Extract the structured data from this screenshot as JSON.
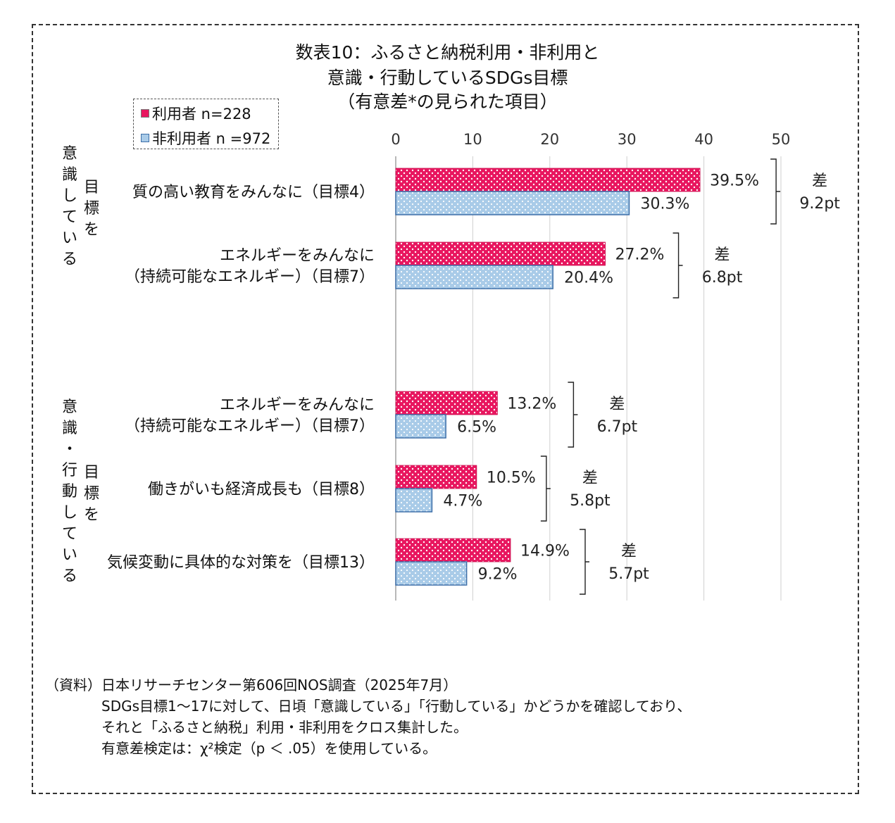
{
  "title": {
    "line1": "数表10：ふるさと納税利用・非利用と",
    "line2": "意識・行動しているSDGs目標",
    "line3": "（有意差*の見られた項目）"
  },
  "legend": {
    "user": "利用者 n=228",
    "nonuser": "非利用者 n =972"
  },
  "groups": {
    "group1": "意識している目標を",
    "group1_col1": "意識している",
    "group1_col2": "目標を",
    "group2": "意識・行動している目標を",
    "group2_col1": "意識・行動している",
    "group2_col2": "目標を"
  },
  "colors": {
    "user": "#e8165f",
    "nonuser": "#a9cbe8",
    "nonuser_border": "#3d6fa8"
  },
  "chart_data": {
    "type": "bar",
    "orientation": "horizontal",
    "xlim": [
      0,
      50
    ],
    "xticks": [
      "0",
      "10",
      "20",
      "30",
      "40",
      "50"
    ],
    "grid": true,
    "legend_position": "top-left",
    "categories": [
      "質の高い教育をみんなに（目標4）",
      "エネルギーをみんなに（持続可能なエネルギー）（目標7）",
      "エネルギーをみんなに（持続可能なエネルギー）（目標7）",
      "働きがいも経済成長も（目標8）",
      "気候変動に具体的な対策を（目標13）"
    ],
    "category_lines": [
      [
        "質の高い教育をみんなに（目標4）"
      ],
      [
        "エネルギーをみんなに",
        "（持続可能なエネルギー）（目標7）"
      ],
      [
        "エネルギーをみんなに",
        "（持続可能なエネルギー）（目標7）"
      ],
      [
        "働きがいも経済成長も（目標8）"
      ],
      [
        "気候変動に具体的な対策を（目標13）"
      ]
    ],
    "series": [
      {
        "name": "利用者 n=228",
        "values": [
          39.5,
          27.2,
          13.2,
          10.5,
          14.9
        ],
        "labels": [
          "39.5%",
          "27.2%",
          "13.2%",
          "10.5%",
          "14.9%"
        ]
      },
      {
        "name": "非利用者 n =972",
        "values": [
          30.3,
          20.4,
          6.5,
          4.7,
          9.2
        ],
        "labels": [
          "30.3%",
          "20.4%",
          "6.5%",
          "4.7%",
          "9.2%"
        ]
      }
    ],
    "diff_header": "差",
    "diffs": [
      "9.2pt",
      "6.8pt",
      "6.7pt",
      "5.8pt",
      "5.7pt"
    ]
  },
  "note": {
    "line1": "（資料）日本リサーチセンター第606回NOS調査（2025年7月）",
    "line2": "SDGs目標1～17に対して、日頃「意識している」「行動している」かどうかを確認しており、",
    "line3": "それと「ふるさと納税」利用・非利用をクロス集計した。",
    "line4": "有意差検定は：χ²検定（p ＜ .05）を使用している。"
  }
}
